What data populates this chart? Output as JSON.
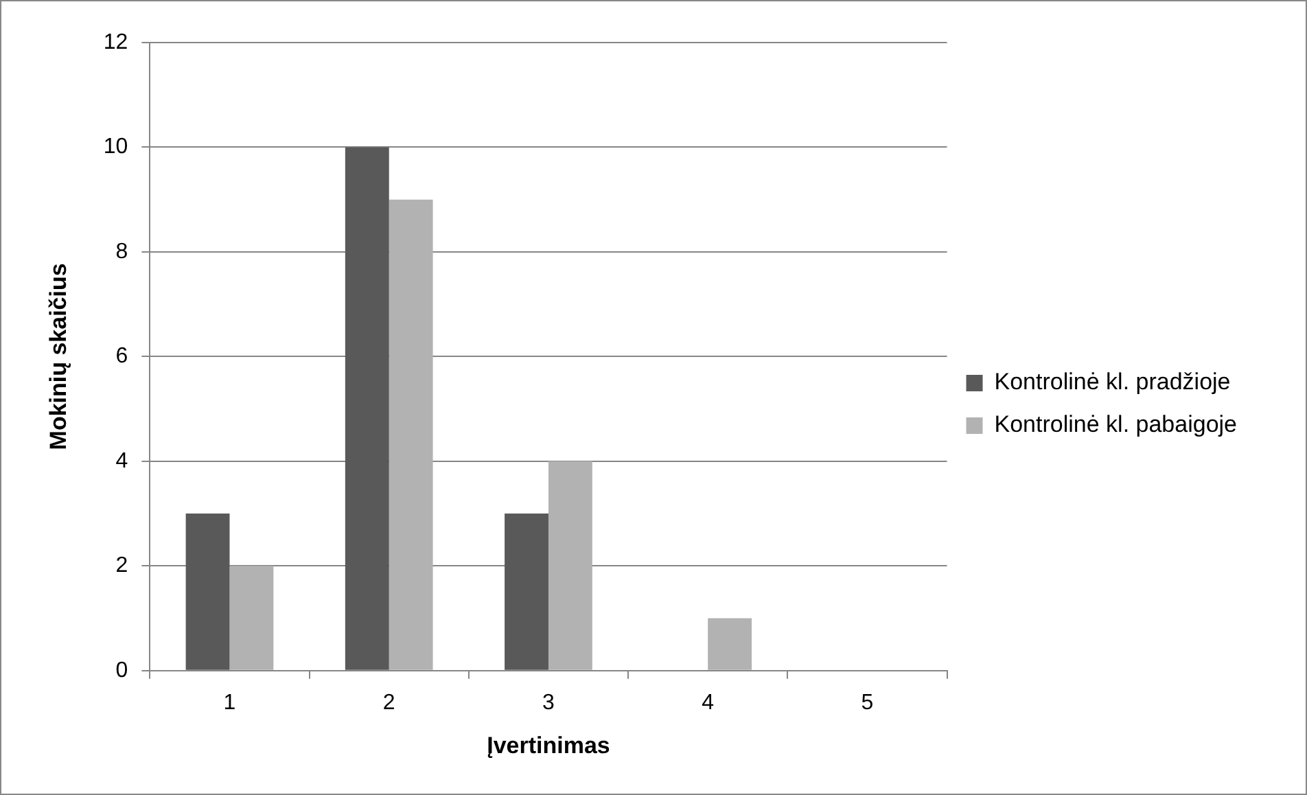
{
  "chart_data": {
    "type": "bar",
    "xlabel": "Įvertinimas",
    "ylabel": "Mokinių skaičius",
    "categories": [
      "1",
      "2",
      "3",
      "4",
      "5"
    ],
    "series": [
      {
        "name": "Kontrolinė kl. pradžioje",
        "color": "#595959",
        "values": [
          3,
          10,
          3,
          0,
          0
        ]
      },
      {
        "name": "Kontrolinė kl. pabaigoje",
        "color": "#b2b2b2",
        "values": [
          2,
          9,
          4,
          1,
          0
        ]
      }
    ],
    "ylim": [
      0,
      12
    ],
    "yticks": [
      0,
      2,
      4,
      6,
      8,
      10,
      12
    ],
    "grid": "y",
    "legend": "right"
  }
}
